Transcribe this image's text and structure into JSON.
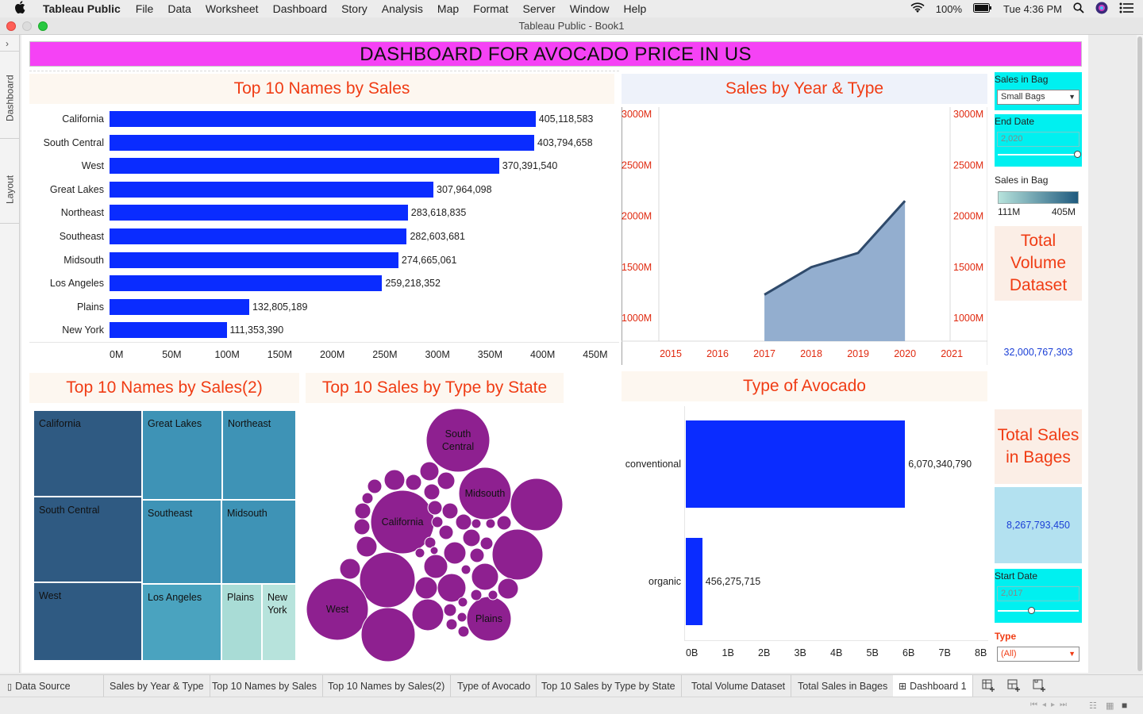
{
  "menubar": {
    "app_name": "Tableau Public",
    "items": [
      "File",
      "Data",
      "Worksheet",
      "Dashboard",
      "Story",
      "Analysis",
      "Map",
      "Format",
      "Server",
      "Window",
      "Help"
    ],
    "battery": "100%",
    "clock": "Tue 4:36 PM"
  },
  "window": {
    "title": "Tableau Public - Book1"
  },
  "side_tabs": {
    "dashboard": "Dashboard",
    "layout": "Layout"
  },
  "dashboard": {
    "header": "DASHBOARD FOR AVOCADO PRICE IN US"
  },
  "sheets": {
    "top10_sales": "Top 10 Names by Sales",
    "sales_year_type": "Sales by Year & Type",
    "top10_sales2": "Top 10 Names by Sales(2)",
    "top10_state": "Top 10  Sales by Type  by State",
    "type_avocado": "Type of Avocado"
  },
  "controls": {
    "sales_in_bag_filter": {
      "title": "Sales in Bag",
      "value": "Small Bags"
    },
    "end_date": {
      "title": "End Date",
      "value": "2,020",
      "level": 1.0
    },
    "legend": {
      "title": "Sales in Bag",
      "min": "111M",
      "max": "405M"
    },
    "start_date": {
      "title": "Start Date",
      "value": "2,017",
      "level": 0.4
    },
    "type_filter": {
      "title": "Type",
      "value": "(All)"
    }
  },
  "kpis": {
    "total_volume": {
      "title": "Total Volume Dataset",
      "value": "32,000,767,303"
    },
    "total_sales_bags": {
      "title": "Total Sales in Bages",
      "value": "8,267,793,450"
    }
  },
  "chart_data": [
    {
      "type": "bar",
      "orientation": "horizontal",
      "categories": [
        "California",
        "South Central",
        "West",
        "Great Lakes",
        "Northeast",
        "Southeast",
        "Midsouth",
        "Los Angeles",
        "Plains",
        "New York"
      ],
      "values": [
        405118583,
        403794658,
        370391540,
        307964098,
        283618835,
        282603681,
        274665061,
        259218352,
        132805189,
        111353390
      ],
      "value_labels": [
        "405,118,583",
        "403,794,658",
        "370,391,540",
        "307,964,098",
        "283,618,835",
        "282,603,681",
        "274,665,061",
        "259,218,352",
        "132,805,189",
        "111,353,390"
      ],
      "x_ticks": [
        "0M",
        "50M",
        "100M",
        "150M",
        "200M",
        "250M",
        "300M",
        "350M",
        "400M",
        "450M"
      ],
      "xlim": [
        0,
        450000000
      ],
      "color": "#0a2cff"
    },
    {
      "type": "area",
      "x": [
        2017,
        2018,
        2019,
        2020
      ],
      "values": [
        1230,
        1500,
        1640,
        2150
      ],
      "unit": "M",
      "x_ticks": [
        "2015",
        "2016",
        "2017",
        "2018",
        "2019",
        "2020",
        "2021"
      ],
      "y_ticks": [
        "1000M",
        "1500M",
        "2000M",
        "2500M",
        "3000M"
      ],
      "y_ticks_right": [
        "1000M",
        "1500M",
        "2000M",
        "2500M",
        "3000M"
      ],
      "xlim": [
        2015,
        2021
      ],
      "ylim": [
        780,
        3000
      ],
      "fill": "#93aecf",
      "line": "#2f4a6b"
    },
    {
      "type": "treemap",
      "items": [
        {
          "name": "California",
          "color": "#2f5a82"
        },
        {
          "name": "South Central",
          "color": "#2f5a82"
        },
        {
          "name": "West",
          "color": "#2f5a82"
        },
        {
          "name": "Great Lakes",
          "color": "#3e93b6"
        },
        {
          "name": "Northeast",
          "color": "#3e93b6"
        },
        {
          "name": "Southeast",
          "color": "#3e93b6"
        },
        {
          "name": "Midsouth",
          "color": "#3e93b6"
        },
        {
          "name": "Los Angeles",
          "color": "#4aa3bf"
        },
        {
          "name": "Plains",
          "color": "#a9dcd6"
        },
        {
          "name": "New York",
          "color": "#b7e3dc"
        }
      ]
    },
    {
      "type": "scatter",
      "variant": "packed-bubbles",
      "labels": [
        "South Central",
        "Midsouth",
        "California",
        "West",
        "Plains"
      ],
      "color": "#8e2090"
    },
    {
      "type": "bar",
      "orientation": "horizontal",
      "categories": [
        "conventional",
        "organic"
      ],
      "values": [
        6070340790,
        456275715
      ],
      "value_labels": [
        "6,070,340,790",
        "456,275,715"
      ],
      "x_ticks": [
        "0B",
        "1B",
        "2B",
        "3B",
        "4B",
        "5B",
        "6B",
        "7B",
        "8B"
      ],
      "xlim": [
        0,
        8000000000
      ],
      "color": "#0a2cff"
    }
  ],
  "tabs": {
    "data_source": "Data Source",
    "items": [
      "Sales by Year & Type",
      "Top 10 Names by Sales",
      "Top 10 Names by Sales(2)",
      "Type of Avocado",
      "Top 10  Sales by Type  by State",
      "Total Volume Dataset",
      "Total Sales in Bages"
    ],
    "active": "Dashboard 1"
  }
}
